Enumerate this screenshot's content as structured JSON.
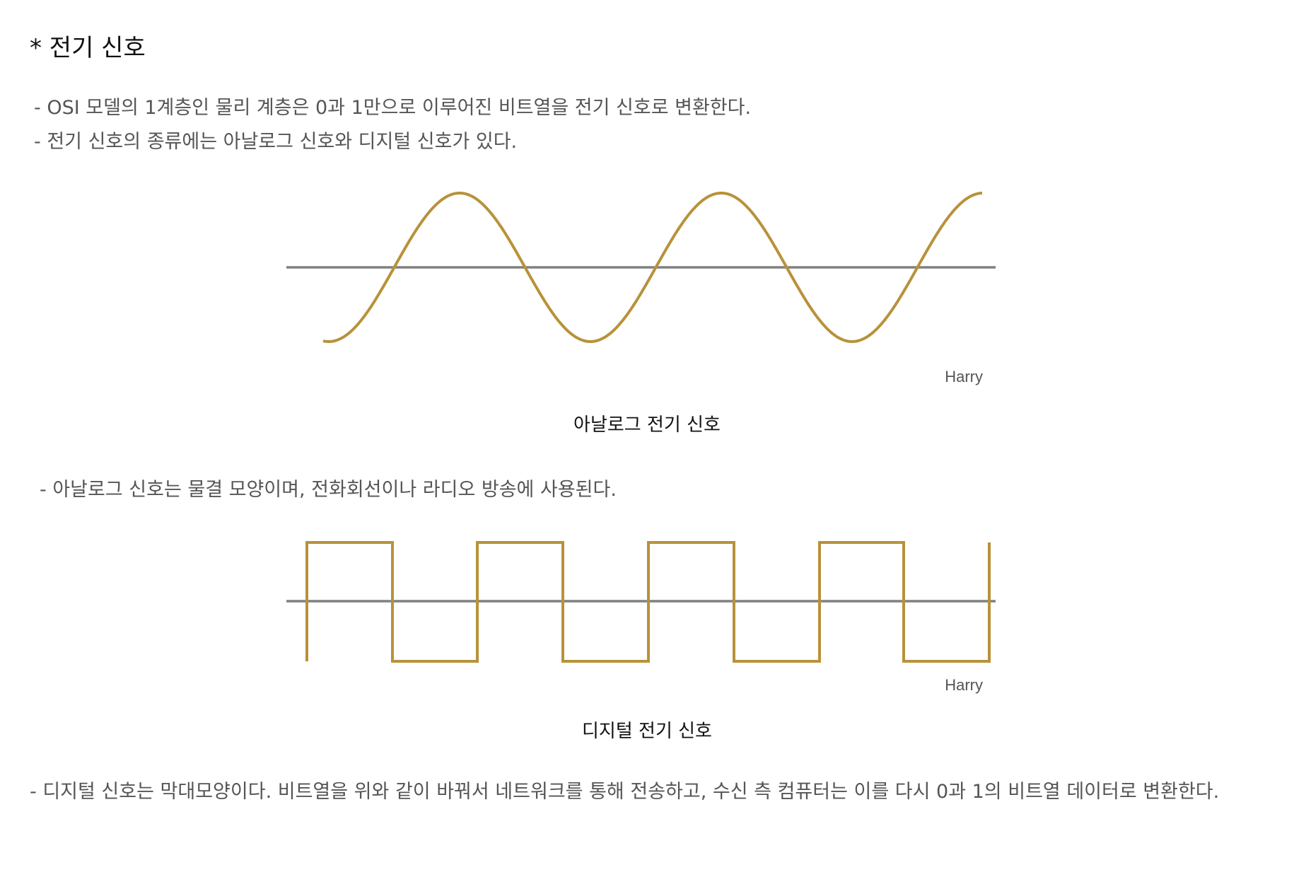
{
  "heading": "* 전기 신호",
  "intro": [
    "- OSI 모델의 1계층인 물리 계층은 0과 1만으로 이루어진 비트열을 전기 신호로 변환한다.",
    "- 전기 신호의 종류에는 아날로그 신호와 디지털 신호가 있다."
  ],
  "analog": {
    "watermark": "Harry",
    "caption": "아날로그 전기 신호",
    "description": "- 아날로그 신호는 물결 모양이며, 전화회선이나 라디오 방송에 사용된다."
  },
  "digital": {
    "watermark": "Harry",
    "caption": "디지털 전기 신호",
    "description": "- 디지털 신호는 막대모양이다. 비트열을 위와 같이 바꿔서 네트워크를 통해 전송하고, 수신 측 컴퓨터는 이를 다시 0과 1의 비트열 데이터로 변환한다."
  },
  "colors": {
    "signal": "#B8923A",
    "axis": "#808080"
  }
}
